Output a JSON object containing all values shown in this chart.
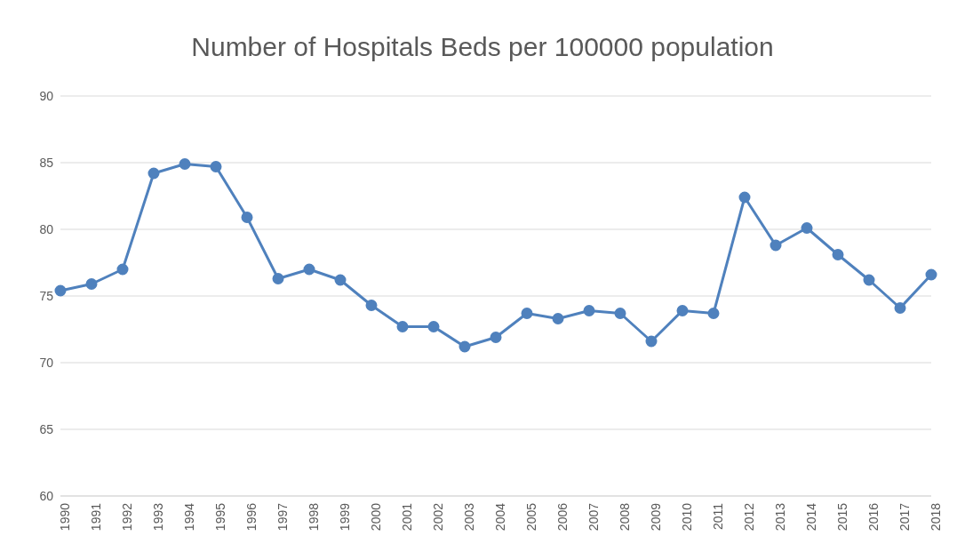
{
  "chart_data": {
    "type": "line",
    "title": "Number of Hospitals Beds per 100000 population",
    "categories": [
      "1990",
      "1991",
      "1992",
      "1993",
      "1994",
      "1995",
      "1996",
      "1997",
      "1998",
      "1999",
      "2000",
      "2001",
      "2002",
      "2003",
      "2004",
      "2005",
      "2006",
      "2007",
      "2008",
      "2009",
      "2010",
      "2011",
      "2012",
      "2013",
      "2014",
      "2015",
      "2016",
      "2017",
      "2018"
    ],
    "series": [
      {
        "color": "#4f81bd",
        "values": [
          75.4,
          75.9,
          77.0,
          84.2,
          84.9,
          84.7,
          80.9,
          76.3,
          77.0,
          76.2,
          74.3,
          72.7,
          72.7,
          71.2,
          71.9,
          73.7,
          73.3,
          73.9,
          73.7,
          71.6,
          73.9,
          73.7,
          82.4,
          78.8,
          80.1,
          78.1,
          76.2,
          74.1,
          76.6
        ]
      }
    ],
    "ylim": [
      60,
      90
    ],
    "yticks": [
      60,
      65,
      70,
      75,
      80,
      85,
      90
    ],
    "grid": "y",
    "marker": "circle",
    "line_style": "solid"
  }
}
